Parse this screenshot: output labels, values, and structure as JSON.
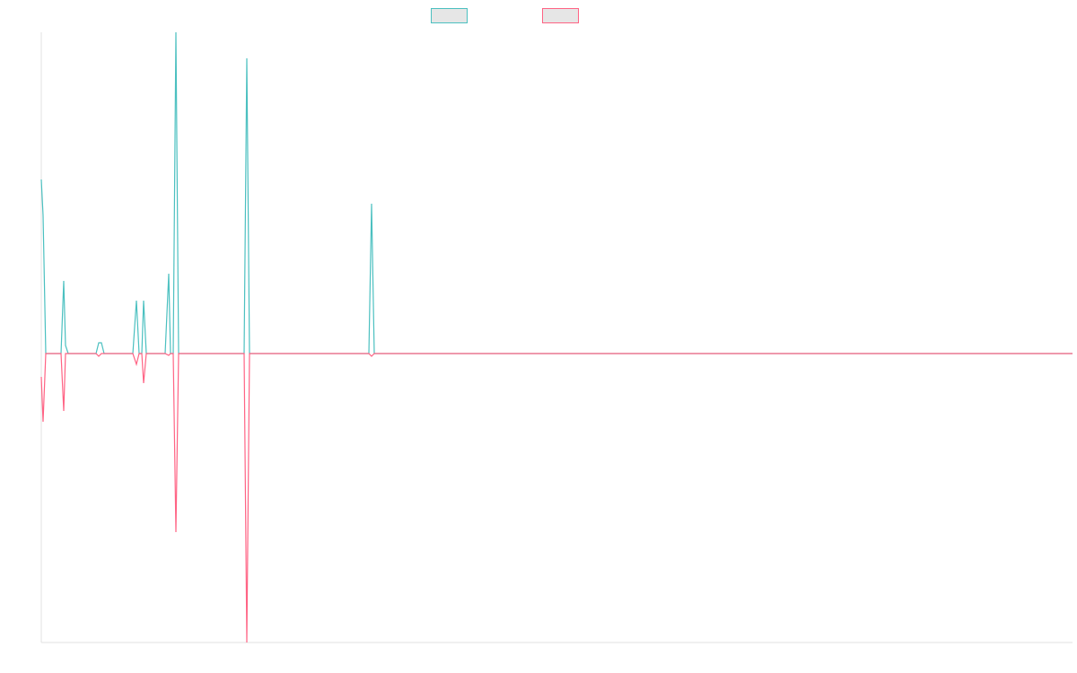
{
  "chart_data": {
    "type": "line",
    "x": [
      0,
      2,
      5,
      22,
      25,
      27,
      30,
      61,
      64,
      67,
      70,
      102,
      106,
      109,
      112,
      114,
      117,
      138,
      142,
      144,
      147,
      150,
      153,
      226,
      229,
      232,
      365,
      368,
      371,
      1149
    ],
    "xlim": [
      0,
      1149
    ],
    "ylim": [
      -322,
      358
    ],
    "series": [
      {
        "color": "#4bc0c0",
        "values": [
          194,
          154,
          0,
          0,
          81,
          9,
          0,
          0,
          12,
          12,
          0,
          0,
          59,
          0,
          0,
          59,
          0,
          0,
          89,
          0,
          0,
          358,
          0,
          0,
          329,
          0,
          0,
          167,
          0,
          0
        ]
      },
      {
        "color": "#ff6384",
        "values": [
          -26,
          -76,
          0,
          0,
          -64,
          0,
          0,
          0,
          -3,
          0,
          0,
          0,
          -12,
          0,
          0,
          -33,
          0,
          0,
          -2,
          0,
          0,
          -199,
          0,
          0,
          -322,
          0,
          0,
          -3,
          0,
          0
        ]
      }
    ]
  }
}
